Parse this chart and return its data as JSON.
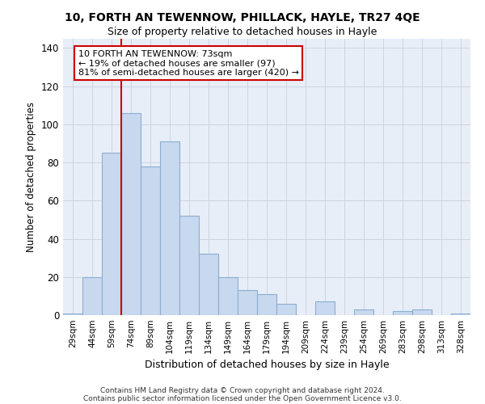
{
  "title": "10, FORTH AN TEWENNOW, PHILLACK, HAYLE, TR27 4QE",
  "subtitle": "Size of property relative to detached houses in Hayle",
  "xlabel": "Distribution of detached houses by size in Hayle",
  "ylabel": "Number of detached properties",
  "bar_color": "#c8d8ee",
  "bar_edge_color": "#8aaed0",
  "categories": [
    "29sqm",
    "44sqm",
    "59sqm",
    "74sqm",
    "89sqm",
    "104sqm",
    "119sqm",
    "134sqm",
    "149sqm",
    "164sqm",
    "179sqm",
    "194sqm",
    "209sqm",
    "224sqm",
    "239sqm",
    "254sqm",
    "269sqm",
    "283sqm",
    "298sqm",
    "313sqm",
    "328sqm"
  ],
  "values": [
    1,
    20,
    85,
    106,
    78,
    91,
    52,
    32,
    20,
    13,
    11,
    6,
    0,
    7,
    0,
    3,
    0,
    2,
    3,
    0,
    1
  ],
  "ylim": [
    0,
    145
  ],
  "yticks": [
    0,
    20,
    40,
    60,
    80,
    100,
    120,
    140
  ],
  "vline_color": "#cc0000",
  "vline_x_index": 3,
  "annotation_title": "10 FORTH AN TEWENNOW: 73sqm",
  "annotation_line1": "← 19% of detached houses are smaller (97)",
  "annotation_line2": "81% of semi-detached houses are larger (420) →",
  "annotation_box_color": "#ffffff",
  "annotation_box_edge": "#cc0000",
  "footnote1": "Contains HM Land Registry data © Crown copyright and database right 2024.",
  "footnote2": "Contains public sector information licensed under the Open Government Licence v3.0.",
  "background_color": "#ffffff",
  "grid_color": "#ccd5e0",
  "fig_width": 6.0,
  "fig_height": 5.0,
  "dpi": 100
}
